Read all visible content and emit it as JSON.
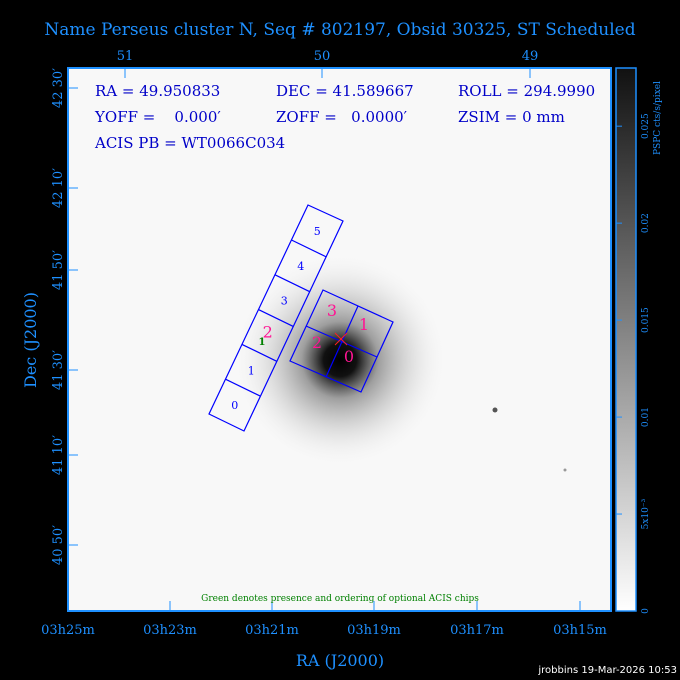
{
  "title": "Name Perseus cluster N, Seq # 802197, Obsid 30325, ST Scheduled",
  "info": {
    "ra": "RA = 49.950833",
    "dec": "DEC = 41.589667",
    "roll": "ROLL = 294.9990",
    "yoff": "YOFF =    0.000′",
    "zoff": "ZOFF =   0.0000′",
    "zsim": "ZSIM = 0 mm",
    "acis_pb": "ACIS PB = WT0066C034"
  },
  "note": "Green denotes presence and ordering of optional ACIS chips",
  "footer": "jrobbins 19-Mar-2026 10:53",
  "colors": {
    "axis": "#1e90ff",
    "chips": "#0000ff",
    "chip_labels_selected": "#ff1493",
    "optional": "#008000",
    "info_text": "#0000c8"
  },
  "chart_data": {
    "type": "image",
    "xlabel": "RA (J2000)",
    "ylabel": "Dec (J2000)",
    "x_ticks_bottom": [
      "03h25m",
      "03h23m",
      "03h21m",
      "03h19m",
      "03h17m",
      "03h15m"
    ],
    "x_ticks_top": [
      "51",
      "50",
      "49"
    ],
    "y_ticks": [
      "42 30′",
      "42 10′",
      "41 50′",
      "41 30′",
      "41 10′",
      "40 50′"
    ],
    "colorbar": {
      "label": "PSPC cts/s/pixel",
      "ticks": [
        "0",
        "5x10⁻³",
        "0.01",
        "0.015",
        "0.02",
        "0.025"
      ],
      "range": [
        0,
        0.028
      ]
    },
    "acis_s_chips": [
      "0",
      "1",
      "2",
      "3",
      "4",
      "5"
    ],
    "acis_i_chips": [
      "0",
      "1",
      "2",
      "3"
    ],
    "acis_s_highlight": "2",
    "optional_chip_order": "1"
  }
}
